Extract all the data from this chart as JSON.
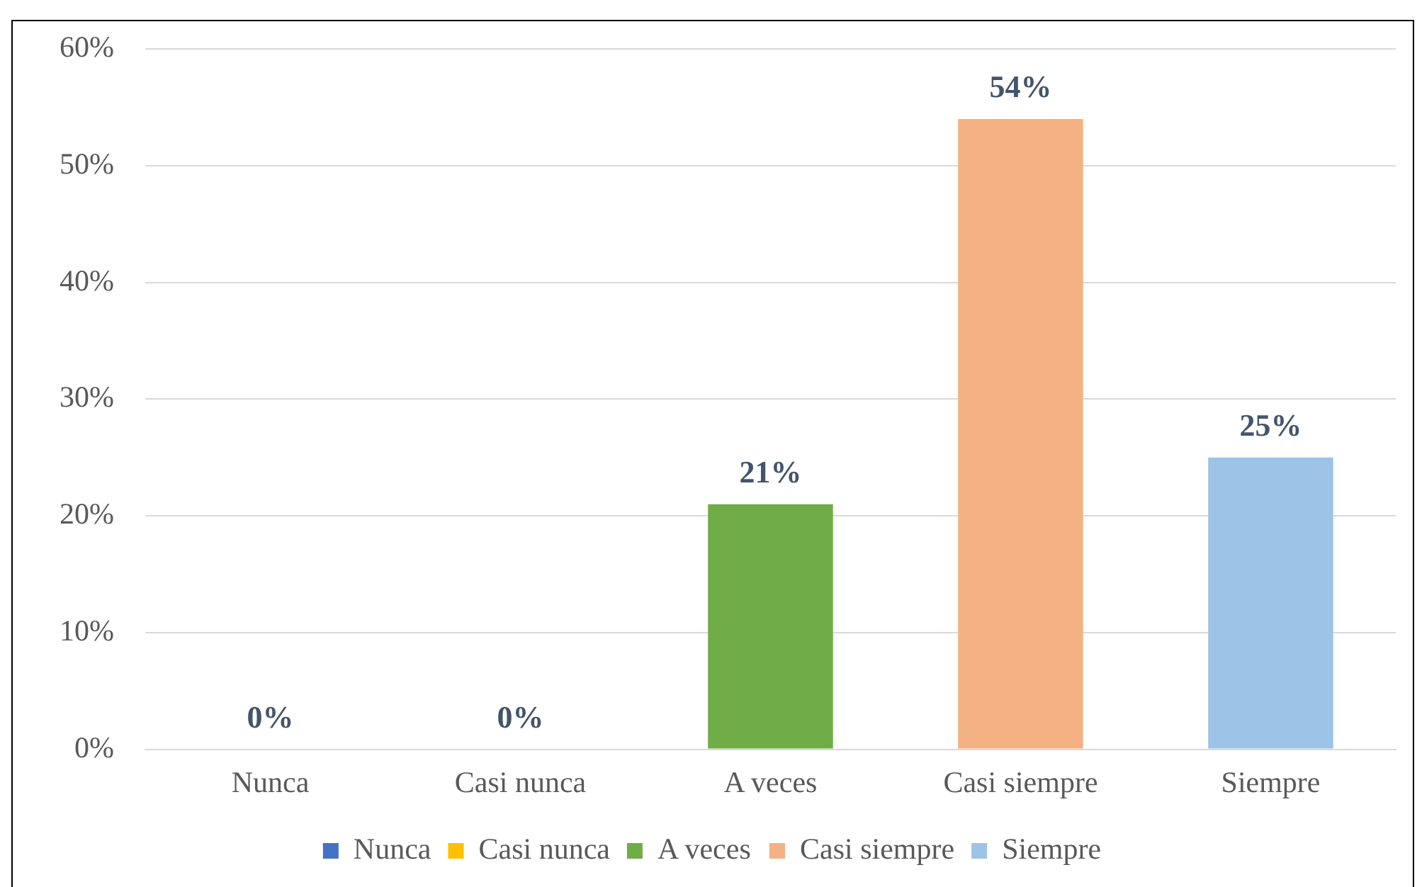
{
  "chart_data": {
    "type": "bar",
    "categories": [
      "Nunca",
      "Casi nunca",
      "A veces",
      "Casi siempre",
      "Siempre"
    ],
    "series": [
      {
        "name": "Nunca",
        "color": "#4472c4",
        "values": [
          0,
          null,
          null,
          null,
          null
        ],
        "value_labels": [
          "0%",
          null,
          null,
          null,
          null
        ]
      },
      {
        "name": "Casi nunca",
        "color": "#ffc000",
        "values": [
          null,
          0,
          null,
          null,
          null
        ],
        "value_labels": [
          null,
          "0%",
          null,
          null,
          null
        ]
      },
      {
        "name": "A veces",
        "color": "#70ad47",
        "values": [
          null,
          null,
          21,
          null,
          null
        ],
        "value_labels": [
          null,
          null,
          "21%",
          null,
          null
        ]
      },
      {
        "name": "Casi siempre",
        "color": "#f4b183",
        "values": [
          null,
          null,
          null,
          54,
          null
        ],
        "value_labels": [
          null,
          null,
          null,
          "54%",
          null
        ]
      },
      {
        "name": "Siempre",
        "color": "#9dc3e6",
        "values": [
          null,
          null,
          null,
          null,
          25
        ],
        "value_labels": [
          null,
          null,
          null,
          null,
          "25%"
        ]
      }
    ],
    "ylim": [
      0,
      60
    ],
    "yticks": [
      {
        "value": 0,
        "label": "0%"
      },
      {
        "value": 10,
        "label": "10%"
      },
      {
        "value": 20,
        "label": "20%"
      },
      {
        "value": 30,
        "label": "30%"
      },
      {
        "value": 40,
        "label": "40%"
      },
      {
        "value": 50,
        "label": "50%"
      },
      {
        "value": 60,
        "label": "60%"
      }
    ],
    "grid": "y",
    "legend": "bottom"
  }
}
